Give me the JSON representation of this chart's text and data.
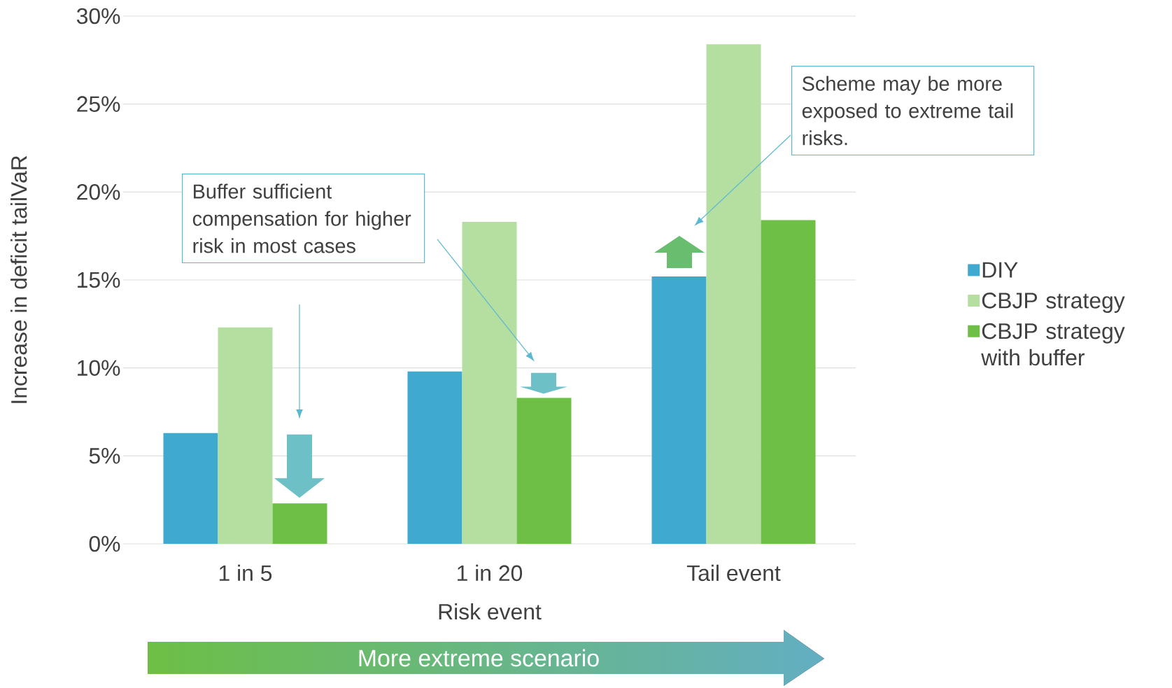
{
  "chart_data": {
    "type": "bar",
    "xlabel": "Risk event",
    "ylabel": "Increase in deficit tailVaR",
    "categories": [
      "1 in 5",
      "1 in 20",
      "Tail event"
    ],
    "series": [
      {
        "name": "DIY",
        "color": "#3fa9cf",
        "values": [
          6.3,
          9.8,
          15.2
        ]
      },
      {
        "name": "CBJP strategy",
        "color": "#b5dfa0",
        "values": [
          12.3,
          18.3,
          28.4
        ]
      },
      {
        "name": "CBJP strategy with buffer",
        "color": "#6dbf45",
        "values": [
          2.3,
          8.3,
          18.4
        ]
      }
    ],
    "ylim": [
      0,
      30
    ],
    "yticks": [
      {
        "value": 0,
        "label": "0%"
      },
      {
        "value": 5,
        "label": "5%"
      },
      {
        "value": 10,
        "label": "10%"
      },
      {
        "value": 15,
        "label": "15%"
      },
      {
        "value": 20,
        "label": "20%"
      },
      {
        "value": 25,
        "label": "25%"
      },
      {
        "value": 30,
        "label": "30%"
      }
    ],
    "grid": "y",
    "legend": "right",
    "annotations": [
      "Buffer sufficient compensation for higher risk in most cases",
      "Scheme may be more exposed to extreme tail risks.",
      "More extreme scenario"
    ]
  }
}
